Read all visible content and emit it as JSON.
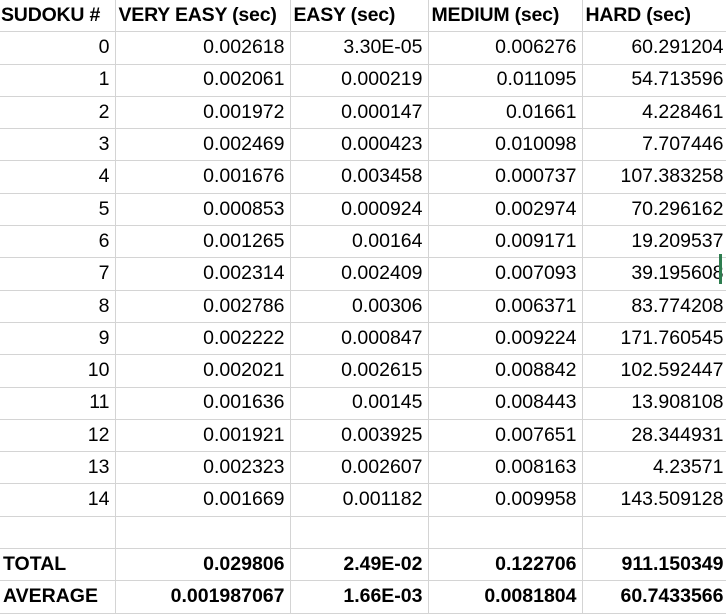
{
  "columns": [
    "SUDOKU #",
    "VERY EASY (sec)",
    "EASY (sec)",
    "MEDIUM (sec)",
    "HARD (sec)"
  ],
  "rows": [
    [
      "0",
      "0.002618",
      "3.30E-05",
      "0.006276",
      "60.291204"
    ],
    [
      "1",
      "0.002061",
      "0.000219",
      "0.011095",
      "54.713596"
    ],
    [
      "2",
      "0.001972",
      "0.000147",
      "0.01661",
      "4.228461"
    ],
    [
      "3",
      "0.002469",
      "0.000423",
      "0.010098",
      "7.707446"
    ],
    [
      "4",
      "0.001676",
      "0.003458",
      "0.000737",
      "107.383258"
    ],
    [
      "5",
      "0.000853",
      "0.000924",
      "0.002974",
      "70.296162"
    ],
    [
      "6",
      "0.001265",
      "0.00164",
      "0.009171",
      "19.209537"
    ],
    [
      "7",
      "0.002314",
      "0.002409",
      "0.007093",
      "39.195608"
    ],
    [
      "8",
      "0.002786",
      "0.00306",
      "0.006371",
      "83.774208"
    ],
    [
      "9",
      "0.002222",
      "0.000847",
      "0.009224",
      "171.760545"
    ],
    [
      "10",
      "0.002021",
      "0.002615",
      "0.008842",
      "102.592447"
    ],
    [
      "11",
      "0.001636",
      "0.00145",
      "0.008443",
      "13.908108"
    ],
    [
      "12",
      "0.001921",
      "0.003925",
      "0.007651",
      "28.344931"
    ],
    [
      "13",
      "0.002323",
      "0.002607",
      "0.008163",
      "4.23571"
    ],
    [
      "14",
      "0.001669",
      "0.001182",
      "0.009958",
      "143.509128"
    ]
  ],
  "total": [
    "TOTAL",
    "0.029806",
    "2.49E-02",
    "0.122706",
    "911.150349"
  ],
  "average": [
    "AVERAGE",
    "0.001987067",
    "1.66E-03",
    "0.0081804",
    "60.7433566"
  ],
  "colors": {
    "gridline": "#d4d4d4",
    "selection_marker": "#2e7d4f"
  }
}
